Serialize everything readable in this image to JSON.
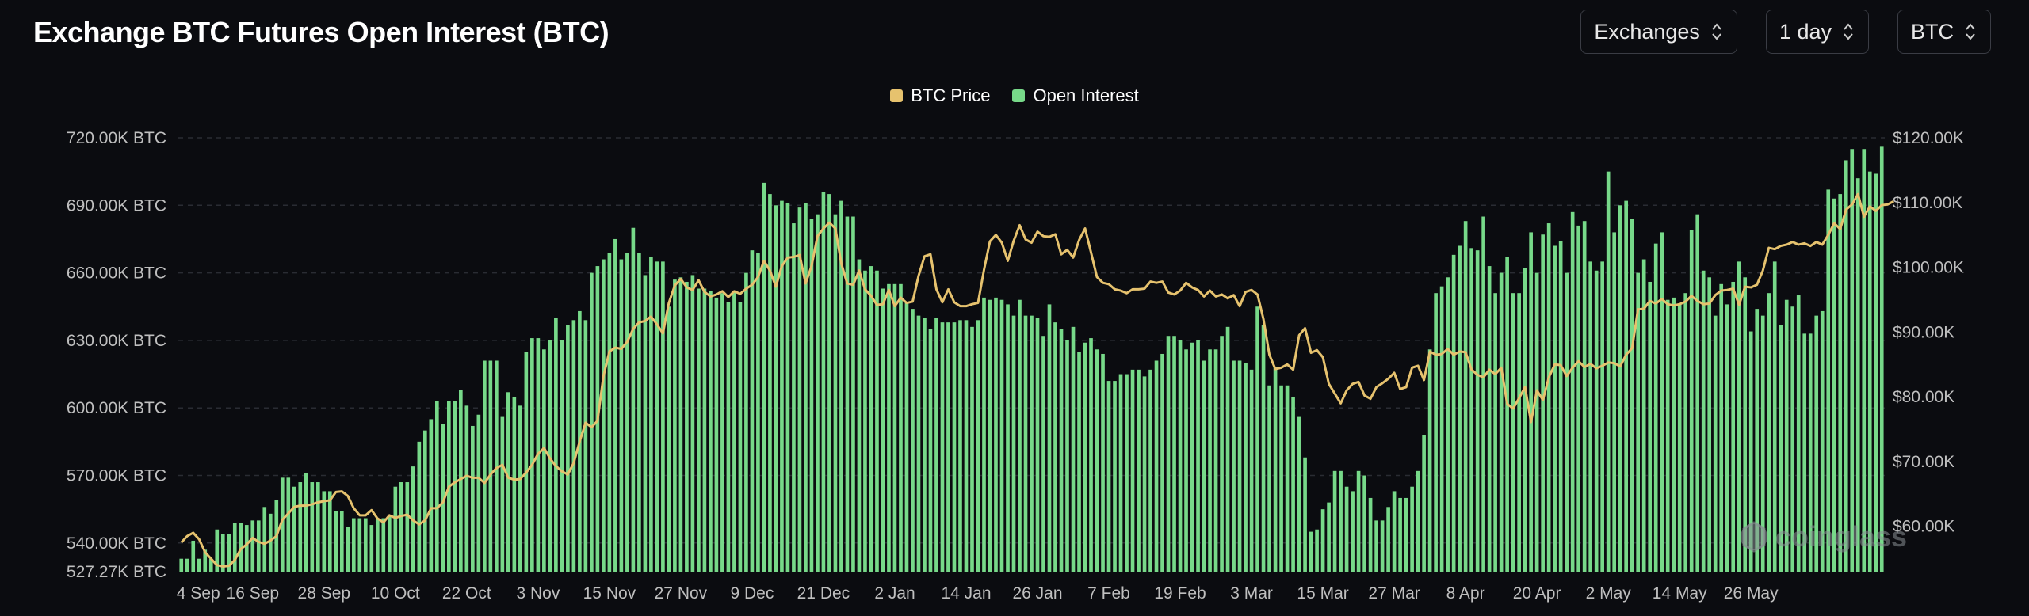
{
  "header": {
    "title": "Exchange BTC Futures Open Interest (BTC)",
    "controls": [
      {
        "label": "Exchanges"
      },
      {
        "label": "1 day"
      },
      {
        "label": "BTC"
      }
    ]
  },
  "watermark": "coinglass",
  "colors": {
    "price": "#e6c26e",
    "oi": "#77d989",
    "grid": "#2a2c33"
  },
  "chart_data": {
    "type": "bar",
    "legend": [
      {
        "name": "BTC Price",
        "color": "#e6c26e"
      },
      {
        "name": "Open Interest",
        "color": "#77d989"
      }
    ],
    "legend_position": "top-center",
    "x_ticks": [
      "4 Sep",
      "16 Sep",
      "28 Sep",
      "10 Oct",
      "22 Oct",
      "3 Nov",
      "15 Nov",
      "27 Nov",
      "9 Dec",
      "21 Dec",
      "2 Jan",
      "14 Jan",
      "26 Jan",
      "7 Feb",
      "19 Feb",
      "3 Mar",
      "15 Mar",
      "27 Mar",
      "8 Apr",
      "20 Apr",
      "2 May",
      "14 May",
      "26 May"
    ],
    "y_left": {
      "min": 527270,
      "max": 720000,
      "ticks": [
        527270,
        540000,
        570000,
        600000,
        630000,
        660000,
        690000,
        720000
      ],
      "tick_labels": [
        "527.27K BTC",
        "540.00K BTC",
        "570.00K BTC",
        "600.00K BTC",
        "630.00K BTC",
        "660.00K BTC",
        "690.00K BTC",
        "720.00K BTC"
      ]
    },
    "y_right": {
      "min": 53000,
      "max": 120000,
      "ticks": [
        60000,
        70000,
        80000,
        90000,
        100000,
        110000,
        120000
      ],
      "tick_labels": [
        "$60.00K",
        "$70.00K",
        "$80.00K",
        "$90.00K",
        "$100.00K",
        "$110.00K",
        "$120.00K"
      ]
    },
    "grid": true,
    "days_per_tick": 12,
    "series": [
      {
        "name": "Open Interest",
        "axis": "left",
        "type": "bar",
        "values": [
          533,
          533,
          541,
          533,
          537,
          533,
          546,
          544,
          544,
          549,
          549,
          548,
          550,
          550,
          556,
          553,
          559,
          569,
          569,
          565,
          567,
          571,
          567,
          567,
          563,
          563,
          554,
          554,
          547,
          551,
          551,
          551,
          548,
          551,
          551,
          552,
          565,
          567,
          567,
          574,
          585,
          590,
          595,
          603,
          593,
          603,
          603,
          608,
          601,
          592,
          597,
          621,
          621,
          621,
          596,
          607,
          605,
          601,
          625,
          631,
          631,
          626,
          630,
          640,
          630,
          637,
          639,
          643,
          639,
          660,
          663,
          666,
          669,
          675,
          666,
          669,
          680,
          669,
          659,
          667,
          665,
          665,
          645,
          657,
          658,
          656,
          659,
          653,
          653,
          652,
          649,
          651,
          647,
          652,
          647,
          660,
          670,
          669,
          700,
          695,
          690,
          692,
          691,
          682,
          689,
          691,
          684,
          686,
          696,
          695,
          686,
          692,
          685,
          685,
          666,
          661,
          663,
          661,
          653,
          655,
          655,
          655,
          647,
          644,
          641,
          640,
          635,
          640,
          638,
          638,
          638,
          639,
          639,
          636,
          639,
          649,
          648,
          649,
          648,
          646,
          641,
          648,
          641,
          641,
          640,
          632,
          646,
          638,
          635,
          630,
          636,
          625,
          629,
          631,
          626,
          624,
          612,
          612,
          615,
          615,
          617,
          617,
          614,
          617,
          621,
          624,
          632,
          632,
          630,
          626,
          629,
          630,
          621,
          626,
          626,
          632,
          636,
          621,
          621,
          620,
          617,
          645,
          637,
          610,
          618,
          610,
          610,
          605,
          596,
          578,
          545,
          546,
          555,
          558,
          572,
          572,
          565,
          563,
          572,
          570,
          560,
          550,
          550,
          556,
          563,
          560,
          560,
          565,
          572,
          588,
          626,
          651,
          654,
          658,
          668,
          672,
          683,
          671,
          670,
          685,
          663,
          651,
          660,
          667,
          651,
          651,
          662,
          678,
          660,
          677,
          682,
          672,
          674,
          660,
          687,
          681,
          683,
          665,
          661,
          665,
          705,
          678,
          690,
          692,
          684,
          660,
          666,
          656,
          673,
          678,
          648,
          649,
          646,
          651,
          679,
          686,
          661,
          658,
          641,
          655,
          646,
          656,
          665,
          658,
          634,
          644,
          641,
          651,
          665,
          637,
          648,
          645,
          650,
          633,
          633,
          641,
          643,
          697,
          693,
          695,
          710,
          715,
          702,
          715,
          705,
          704,
          716
        ]
      },
      {
        "name": "BTC Price",
        "axis": "right",
        "type": "line",
        "values": [
          57500,
          58500,
          59000,
          58000,
          56000,
          55000,
          54000,
          53800,
          53900,
          54800,
          56500,
          57200,
          58200,
          57600,
          57300,
          57800,
          58500,
          61000,
          62000,
          63000,
          63200,
          63200,
          63400,
          63700,
          63900,
          64000,
          65300,
          65400,
          64700,
          62800,
          61700,
          61700,
          62500,
          61200,
          60600,
          61700,
          61300,
          61600,
          61800,
          60900,
          60300,
          60900,
          62800,
          62800,
          63700,
          66100,
          66800,
          67300,
          67800,
          67500,
          67500,
          66700,
          68000,
          69000,
          69500,
          67500,
          67200,
          67300,
          68300,
          69500,
          71200,
          72100,
          70500,
          69300,
          68500,
          68000,
          69800,
          73100,
          76000,
          75300,
          76300,
          83200,
          87000,
          87600,
          87400,
          88500,
          90500,
          91500,
          91700,
          92400,
          91200,
          89800,
          94500,
          97200,
          98200,
          96900,
          96500,
          98000,
          96200,
          95500,
          95800,
          96300,
          95400,
          96300,
          95900,
          96700,
          97300,
          98500,
          101000,
          99500,
          97000,
          100200,
          101500,
          101600,
          101900,
          97500,
          100200,
          104800,
          106000,
          106900,
          106000,
          100600,
          97500,
          97300,
          99500,
          96600,
          95600,
          94200,
          94300,
          96500,
          94000,
          95300,
          94500,
          94700,
          98700,
          101700,
          102000,
          96600,
          94600,
          96600,
          94600,
          94000,
          94000,
          94300,
          94500,
          99600,
          104000,
          105000,
          103800,
          101000,
          104100,
          106500,
          104300,
          103800,
          105500,
          104800,
          104700,
          105100,
          102000,
          102700,
          101500,
          104200,
          106000,
          102300,
          98500,
          97600,
          97400,
          96600,
          96400,
          96000,
          96600,
          96600,
          96700,
          97800,
          97600,
          97800,
          96100,
          95800,
          96400,
          97600,
          96900,
          96500,
          95500,
          96400,
          95500,
          95800,
          95200,
          95700,
          94000,
          96200,
          96500,
          95800,
          92000,
          86500,
          84300,
          84500,
          85000,
          84200,
          89500,
          90600,
          86800,
          87200,
          86100,
          82000,
          80500,
          79000,
          81000,
          82000,
          82300,
          80200,
          79700,
          81500,
          82100,
          82800,
          83700,
          81200,
          81500,
          84500,
          84800,
          82600,
          87000,
          86500,
          86600,
          87400,
          86500,
          87000,
          86900,
          84200,
          83400,
          83000,
          84200,
          83500,
          84500,
          78900,
          78200,
          79800,
          81500,
          76100,
          81000,
          79500,
          83000,
          85000,
          84900,
          83200,
          84500,
          85500,
          84600,
          85100,
          84400,
          84800,
          85300,
          85200,
          84700,
          86500,
          87500,
          93500,
          93600,
          94800,
          94400,
          95100,
          94300,
          94100,
          94300,
          94700,
          95600,
          94800,
          94300,
          94400,
          95700,
          96400,
          96500,
          96700,
          94200,
          97000,
          96900,
          97300,
          99500,
          103000,
          102800,
          103300,
          103500,
          103900,
          103500,
          103700,
          103300,
          103900,
          103500,
          105000,
          106800,
          105900,
          108900,
          109700,
          111300,
          107800,
          109400,
          108700,
          109600,
          109700,
          110200
        ]
      }
    ]
  }
}
